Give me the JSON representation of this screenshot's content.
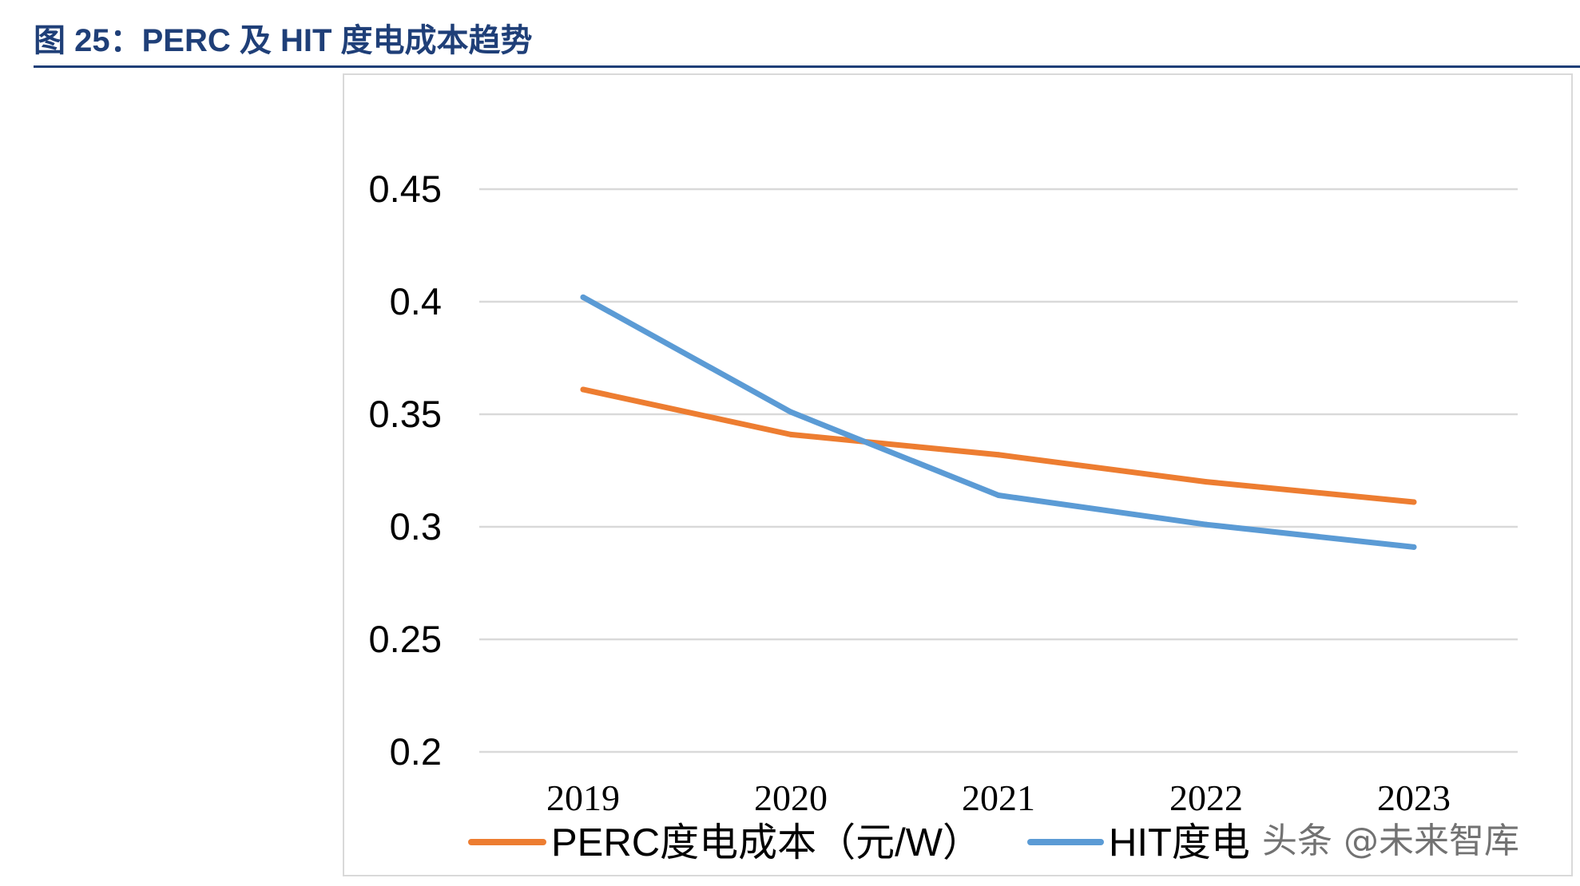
{
  "figure_title": "图 25：PERC 及 HIT 度电成本趋势",
  "watermark": "头条 @未来智库",
  "chart_data": {
    "type": "line",
    "title": "",
    "xlabel": "",
    "ylabel": "",
    "categories": [
      "2019",
      "2020",
      "2021",
      "2022",
      "2023"
    ],
    "ylim": [
      0.2,
      0.45
    ],
    "yticks": [
      0.45,
      0.4,
      0.35,
      0.3,
      0.25,
      0.2
    ],
    "ytick_labels": [
      "0.45",
      "0.4",
      "0.35",
      "0.3",
      "0.25",
      "0.2"
    ],
    "grid": "horizontal",
    "legend_position": "bottom",
    "series": [
      {
        "name": "PERC度电成本（元/W）",
        "color": "#ed7d31",
        "values": [
          0.361,
          0.341,
          0.332,
          0.32,
          0.311
        ]
      },
      {
        "name": "HIT度电",
        "color": "#5b9bd5",
        "values": [
          0.402,
          0.351,
          0.314,
          0.301,
          0.291
        ]
      }
    ]
  }
}
